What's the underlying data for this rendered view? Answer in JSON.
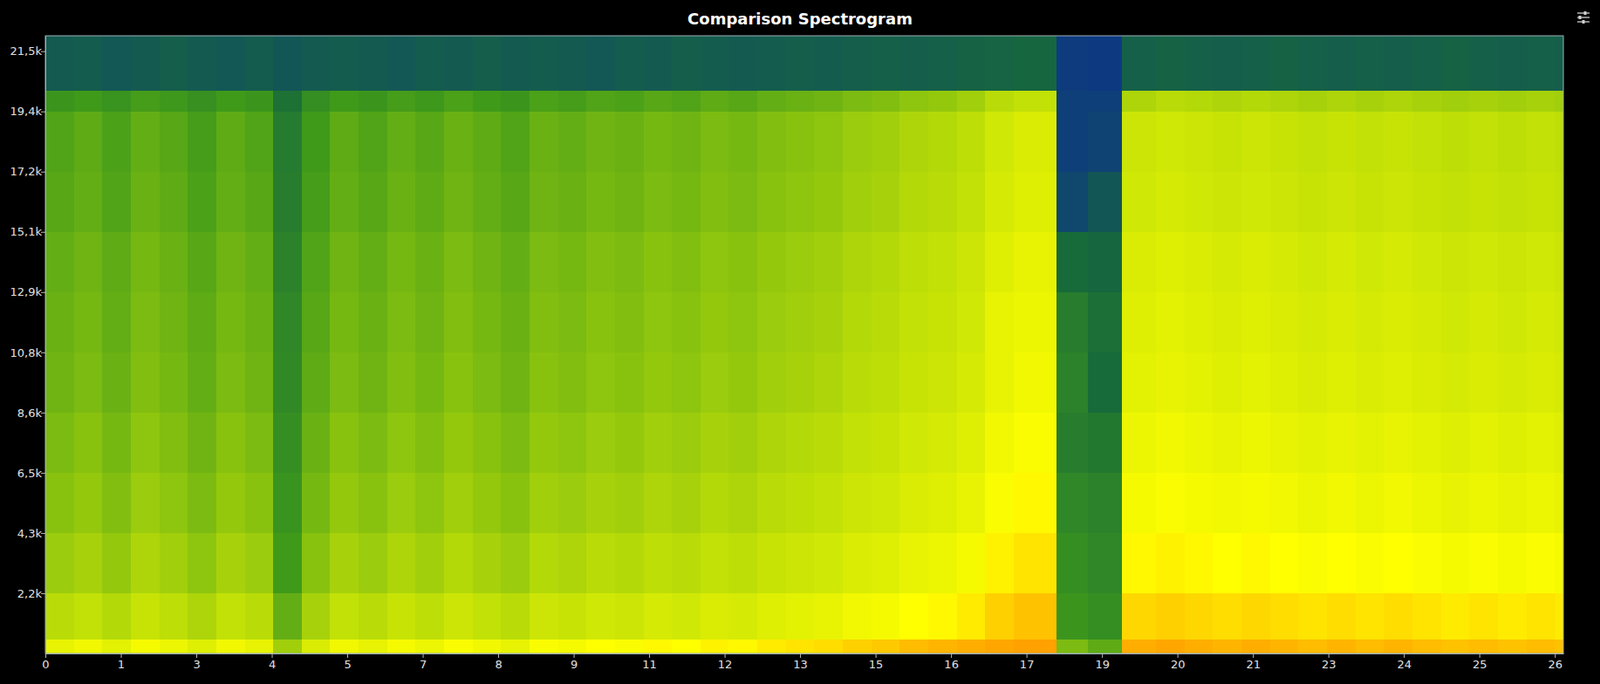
{
  "chart_data": {
    "type": "heatmap",
    "title": "Comparison Spectrogram",
    "xlim": [
      0,
      26.65
    ],
    "ylim": [
      0,
      22050
    ],
    "xticks": [
      0,
      {
        "value": 1.325,
        "label": "1"
      },
      {
        "value": 2.65,
        "label": "3"
      },
      {
        "value": 3.975,
        "label": "4"
      },
      {
        "value": 5.3,
        "label": "5"
      },
      {
        "value": 6.625,
        "label": "7"
      },
      {
        "value": 7.95,
        "label": "8"
      },
      {
        "value": 9.275,
        "label": "9"
      },
      {
        "value": 10.6,
        "label": "11"
      },
      {
        "value": 11.925,
        "label": "12"
      },
      {
        "value": 13.25,
        "label": "13"
      },
      {
        "value": 14.575,
        "label": "15"
      },
      {
        "value": 15.9,
        "label": "16"
      },
      {
        "value": 17.225,
        "label": "17"
      },
      {
        "value": 18.55,
        "label": "19"
      },
      {
        "value": 19.875,
        "label": "20"
      },
      {
        "value": 21.2,
        "label": "21"
      },
      {
        "value": 22.525,
        "label": "23"
      },
      {
        "value": 23.85,
        "label": "24"
      },
      {
        "value": 25.175,
        "label": "25"
      },
      {
        "value": 26.5,
        "label": "26"
      }
    ],
    "yticks": [
      {
        "value": 2150,
        "label": "2,2k"
      },
      {
        "value": 4300,
        "label": "4,3k"
      },
      {
        "value": 6450,
        "label": "6,5k"
      },
      {
        "value": 8600,
        "label": "8,6k"
      },
      {
        "value": 10750,
        "label": "10,8k"
      },
      {
        "value": 12900,
        "label": "12,9k"
      },
      {
        "value": 15050,
        "label": "15,1k"
      },
      {
        "value": 17200,
        "label": "17,2k"
      },
      {
        "value": 19350,
        "label": "19,4k"
      },
      {
        "value": 21500,
        "label": "21,5k"
      }
    ],
    "color_range": [
      0,
      100
    ],
    "time_bins": [
      0,
      0.5,
      1,
      1.5,
      2,
      2.5,
      3,
      3.5,
      4,
      4.5,
      5,
      5.5,
      6,
      6.5,
      7,
      7.5,
      8,
      8.5,
      9,
      9.5,
      10,
      10.5,
      11,
      11.5,
      12,
      12.5,
      13,
      13.5,
      14,
      14.5,
      15,
      15.5,
      16,
      16.5,
      17,
      17.75,
      18.3,
      18.9,
      19.5,
      20,
      20.5,
      21,
      21.5,
      22,
      22.5,
      23,
      23.5,
      24,
      24.5,
      25,
      25.5,
      26,
      26.5,
      26.65
    ],
    "freq_bins": [
      0,
      500,
      2150,
      4300,
      6450,
      8600,
      10750,
      12900,
      15050,
      17200,
      19350,
      20100,
      22050
    ],
    "cells": [
      [
        80,
        82,
        79,
        83,
        81,
        78,
        82,
        80,
        66,
        77,
        82,
        80,
        83,
        81,
        84,
        82,
        80,
        84,
        83,
        85,
        84,
        86,
        85,
        87,
        86,
        88,
        89,
        90,
        92,
        93,
        95,
        96,
        97,
        98,
        99,
        60,
        55,
        97,
        98,
        97,
        96,
        97,
        96,
        95,
        96,
        95,
        96,
        95,
        94,
        95,
        94,
        95,
        94
      ],
      [
        70,
        72,
        69,
        73,
        71,
        68,
        72,
        70,
        56,
        67,
        72,
        70,
        73,
        71,
        74,
        72,
        70,
        74,
        73,
        75,
        74,
        76,
        75,
        77,
        76,
        78,
        79,
        80,
        82,
        83,
        85,
        86,
        88,
        92,
        94,
        48,
        45,
        91,
        92,
        91,
        90,
        91,
        90,
        89,
        90,
        89,
        90,
        89,
        88,
        89,
        88,
        89,
        88
      ],
      [
        65,
        67,
        64,
        68,
        66,
        63,
        67,
        65,
        50,
        62,
        67,
        65,
        68,
        66,
        69,
        67,
        65,
        69,
        68,
        70,
        69,
        71,
        70,
        72,
        71,
        73,
        74,
        75,
        77,
        78,
        80,
        81,
        83,
        87,
        89,
        45,
        42,
        86,
        87,
        86,
        85,
        86,
        85,
        84,
        85,
        84,
        85,
        84,
        83,
        84,
        83,
        84,
        83
      ],
      [
        62,
        64,
        61,
        65,
        63,
        60,
        64,
        62,
        47,
        59,
        64,
        62,
        65,
        63,
        66,
        64,
        62,
        66,
        65,
        67,
        66,
        68,
        67,
        69,
        68,
        70,
        71,
        72,
        74,
        75,
        77,
        78,
        80,
        84,
        86,
        42,
        40,
        83,
        84,
        83,
        82,
        83,
        82,
        81,
        82,
        81,
        82,
        81,
        80,
        81,
        80,
        81,
        80
      ],
      [
        60,
        62,
        59,
        63,
        61,
        58,
        62,
        60,
        45,
        57,
        62,
        60,
        63,
        61,
        64,
        62,
        60,
        64,
        63,
        65,
        64,
        66,
        65,
        67,
        66,
        68,
        69,
        70,
        72,
        73,
        75,
        76,
        78,
        82,
        84,
        38,
        36,
        81,
        82,
        81,
        80,
        81,
        80,
        79,
        80,
        79,
        80,
        79,
        78,
        79,
        78,
        79,
        78
      ],
      [
        58,
        60,
        57,
        61,
        59,
        56,
        60,
        58,
        43,
        55,
        60,
        58,
        61,
        59,
        62,
        60,
        58,
        62,
        61,
        63,
        62,
        64,
        63,
        65,
        64,
        66,
        67,
        68,
        70,
        71,
        73,
        74,
        76,
        80,
        82,
        40,
        30,
        79,
        80,
        79,
        78,
        79,
        78,
        77,
        78,
        77,
        78,
        77,
        76,
        77,
        76,
        77,
        76
      ],
      [
        57,
        59,
        56,
        60,
        58,
        55,
        59,
        57,
        42,
        54,
        59,
        57,
        60,
        58,
        61,
        59,
        57,
        61,
        60,
        62,
        61,
        63,
        62,
        64,
        63,
        65,
        66,
        67,
        69,
        70,
        72,
        73,
        75,
        80,
        81,
        38,
        32,
        78,
        79,
        78,
        77,
        78,
        77,
        76,
        77,
        76,
        77,
        76,
        75,
        76,
        75,
        76,
        75
      ],
      [
        56,
        58,
        55,
        59,
        57,
        54,
        58,
        56,
        40,
        53,
        58,
        56,
        59,
        57,
        60,
        58,
        56,
        60,
        59,
        61,
        60,
        62,
        61,
        63,
        62,
        64,
        65,
        66,
        68,
        69,
        71,
        72,
        74,
        78,
        80,
        30,
        28,
        77,
        78,
        77,
        76,
        77,
        76,
        75,
        76,
        75,
        76,
        75,
        74,
        75,
        74,
        75,
        74
      ],
      [
        54,
        56,
        53,
        57,
        55,
        52,
        56,
        54,
        38,
        51,
        56,
        54,
        57,
        55,
        58,
        56,
        54,
        58,
        57,
        59,
        58,
        60,
        59,
        61,
        60,
        62,
        63,
        64,
        66,
        67,
        69,
        70,
        72,
        76,
        78,
        12,
        20,
        75,
        76,
        75,
        74,
        75,
        74,
        73,
        74,
        73,
        74,
        73,
        72,
        73,
        72,
        73,
        72
      ],
      [
        53,
        55,
        52,
        56,
        54,
        51,
        55,
        53,
        37,
        50,
        55,
        53,
        56,
        54,
        57,
        55,
        53,
        57,
        56,
        58,
        57,
        59,
        58,
        60,
        59,
        61,
        62,
        63,
        65,
        66,
        68,
        69,
        71,
        75,
        77,
        8,
        10,
        74,
        75,
        74,
        73,
        74,
        73,
        72,
        73,
        72,
        73,
        72,
        71,
        72,
        71,
        72,
        71
      ],
      [
        48,
        50,
        47,
        51,
        49,
        46,
        50,
        48,
        33,
        45,
        50,
        48,
        51,
        49,
        52,
        50,
        48,
        52,
        51,
        53,
        52,
        54,
        53,
        55,
        54,
        56,
        57,
        58,
        60,
        61,
        63,
        64,
        66,
        70,
        72,
        8,
        8,
        68,
        70,
        69,
        68,
        69,
        68,
        67,
        68,
        67,
        68,
        67,
        66,
        67,
        66,
        67,
        66
      ],
      [
        22,
        23,
        21,
        22,
        24,
        22,
        21,
        23,
        20,
        22,
        23,
        22,
        21,
        23,
        22,
        24,
        22,
        23,
        22,
        21,
        23,
        22,
        24,
        23,
        22,
        23,
        24,
        23,
        24,
        25,
        24,
        25,
        26,
        27,
        28,
        6,
        5,
        25,
        26,
        25,
        24,
        25,
        26,
        25,
        24,
        25,
        24,
        25,
        26,
        25,
        24,
        25,
        24
      ]
    ]
  }
}
